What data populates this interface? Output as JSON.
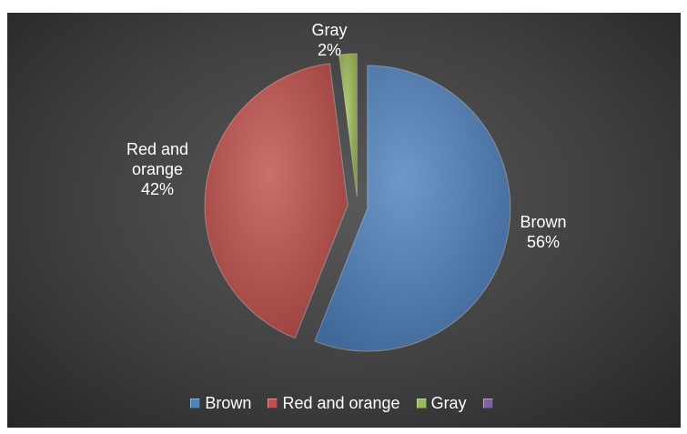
{
  "chart_data": {
    "type": "pie",
    "title": "",
    "exploded": true,
    "slices": [
      {
        "label": "Brown",
        "value": 56,
        "value_label": "56%",
        "color": "#4F81BD"
      },
      {
        "label": "Red and orange",
        "value": 42,
        "value_label": "42%",
        "color": "#C0504D"
      },
      {
        "label": "Gray",
        "value": 2,
        "value_label": "2%",
        "color": "#9BBB59"
      },
      {
        "label": "",
        "value": 0,
        "value_label": "",
        "color": "#8064A2"
      }
    ],
    "legend_position": "bottom",
    "background": "#404040"
  }
}
